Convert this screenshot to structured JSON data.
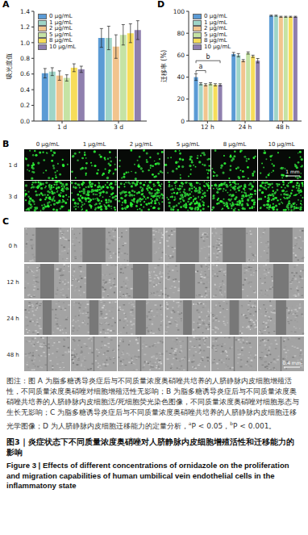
{
  "chart_data": [
    {
      "panel_label": "A",
      "type": "bar",
      "y_label": "吸光度值",
      "categories": [
        "1 d",
        "3 d"
      ],
      "ylim": [
        0,
        1.4
      ],
      "yticks": [
        {
          "value": 0,
          "label": "0.0"
        },
        0.2,
        0.4,
        0.6,
        0.8,
        {
          "value": 1,
          "label": "1.0"
        },
        1.2,
        1.4
      ],
      "grid": false,
      "legend": "upper left",
      "series": [
        {
          "name": "0 μg/mL",
          "color": "#5b9bd5",
          "values": [
            0.61,
            1.06
          ],
          "errors": [
            0.06,
            0.12
          ]
        },
        {
          "name": "1 μg/mL",
          "color": "#9fd5c8",
          "values": [
            0.63,
            1.06
          ],
          "errors": [
            0.05,
            0.15
          ]
        },
        {
          "name": "2 μg/mL",
          "color": "#f2c48d",
          "values": [
            0.58,
            0.95
          ],
          "errors": [
            0.06,
            0.15
          ]
        },
        {
          "name": "5 μg/mL",
          "color": "#c5e3a4",
          "values": [
            0.55,
            1.1
          ],
          "errors": [
            0.04,
            0.13
          ]
        },
        {
          "name": "8 μg/mL",
          "color": "#f7dd59",
          "values": [
            0.68,
            1.12
          ],
          "errors": [
            0.05,
            0.12
          ]
        },
        {
          "name": "10 μg/mL",
          "color": "#8f7fae",
          "values": [
            0.66,
            1.16
          ],
          "errors": [
            0.04,
            0.12
          ]
        }
      ]
    },
    {
      "panel_label": "D",
      "type": "bar",
      "y_label": "迁移率 (%)",
      "categories": [
        "12 h",
        "24 h",
        "48 h"
      ],
      "ylim": [
        0,
        100
      ],
      "yticks": [
        0,
        20,
        40,
        60,
        80,
        100
      ],
      "grid": false,
      "legend": "upper left",
      "series": [
        {
          "name": "0 μg/mL",
          "color": "#5b9bd5",
          "values": [
            40,
            61,
            96
          ],
          "errors": [
            3,
            1.5,
            0.5
          ]
        },
        {
          "name": "1 μg/mL",
          "color": "#9fd5c8",
          "values": [
            34,
            60,
            96
          ],
          "errors": [
            1,
            1.5,
            0.5
          ]
        },
        {
          "name": "2 μg/mL",
          "color": "#f2c48d",
          "values": [
            33,
            55,
            95
          ],
          "errors": [
            1,
            1,
            0.5
          ]
        },
        {
          "name": "5 μg/mL",
          "color": "#c5e3a4",
          "values": [
            34,
            62,
            95
          ],
          "errors": [
            1,
            1,
            0.5
          ]
        },
        {
          "name": "8 μg/mL",
          "color": "#f7dd59",
          "values": [
            33,
            59,
            95
          ],
          "errors": [
            1,
            1,
            0.5
          ]
        },
        {
          "name": "10 μg/mL",
          "color": "#8f7fae",
          "values": [
            33,
            55,
            95
          ],
          "errors": [
            1,
            2,
            0.5
          ]
        }
      ],
      "annotations": [
        {
          "label": "a",
          "category": "12 h",
          "from": "0 μg/mL",
          "to": "2 μg/mL"
        },
        {
          "label": "b",
          "category": "12 h",
          "from": "0 μg/mL",
          "to": "10 μg/mL"
        }
      ]
    }
  ],
  "images": {
    "B": {
      "panel_label": "B",
      "columns": [
        "0 μg/mL",
        "1 μg/mL",
        "2 μg/mL",
        "5 μg/mL",
        "8 μg/mL",
        "10 μg/mL"
      ],
      "rows": [
        "1 d",
        "3 d"
      ],
      "scale_bar": "1 mm"
    },
    "C": {
      "panel_label": "C",
      "rows": [
        "0 h",
        "12 h",
        "24 h",
        "48 h"
      ],
      "scale_bar": "0.4 mm"
    }
  },
  "caption": {
    "note": "图注：图 A 为脂多糖诱导炎症后与不同质量浓度奥硝唑共培养的人脐静脉内皮细胞增殖活性，不同质量浓度奥硝唑对细胞增殖活性无影响；B 为脂多糖诱导炎症后与不同质量浓度奥硝唑共培养的人脐静脉内皮细胞活/死细胞荧光染色图像，不同质量浓度奥硝唑对细胞形态与生长无影响；C 为脂多糖诱导炎症后与不同质量浓度奥硝唑共培养的人脐静脉内皮细胞迁移光学图像；D 为人脐静脉内皮细胞迁移能力的定量分析，",
    "significance": [
      {
        "mark": "a",
        "text": "P < 0.05，"
      },
      {
        "mark": "b",
        "text": "P < 0.001。"
      }
    ],
    "title_cn": "图3｜炎症状态下不同质量浓度奥硝唑对人脐静脉内皮细胞增殖活性和迁移能力的影响",
    "title_en": "Figure 3 | Effects of different concentrations of ornidazole on the proliferation and migration capabilities of human umbilical vein endothelial cells in the inflammatony state"
  }
}
